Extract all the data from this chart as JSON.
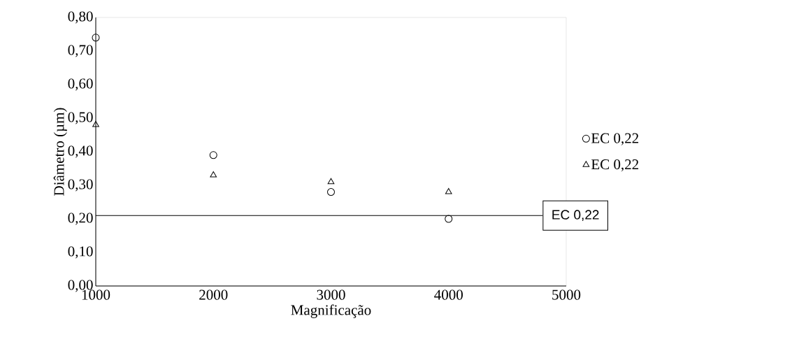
{
  "chart_data": {
    "type": "scatter",
    "xlabel": "Magnificação",
    "ylabel": "Diâmetro (µm)",
    "x": [
      1000,
      2000,
      3000,
      4000
    ],
    "series": [
      {
        "name": "EC 0,22",
        "color": "#000000",
        "marker": "circle",
        "values": [
          0.74,
          0.39,
          0.28,
          0.2
        ]
      },
      {
        "name": "EC 0,22",
        "color": "#000000",
        "marker": "triangle",
        "values": [
          0.48,
          0.33,
          0.31,
          0.28
        ]
      }
    ],
    "xlim": [
      1000,
      5000
    ],
    "xticks": [
      1000,
      2000,
      3000,
      4000,
      5000
    ],
    "ylim": [
      0,
      0.8
    ],
    "yticks": [
      {
        "value": 0,
        "label": "0,00"
      },
      {
        "value": 0.1,
        "label": "0,10"
      },
      {
        "value": 0.2,
        "label": "0,20"
      },
      {
        "value": 0.3,
        "label": "0,30"
      },
      {
        "value": 0.4,
        "label": "0,40"
      },
      {
        "value": 0.5,
        "label": "0,50"
      },
      {
        "value": 0.6,
        "label": "0,60"
      },
      {
        "value": 0.7,
        "label": "0,70"
      },
      {
        "value": 0.8,
        "label": "0,80"
      }
    ],
    "ref_lines": [
      {
        "axis": "y",
        "value": 0.21,
        "label": "EC 0,22",
        "color": "#000000"
      }
    ],
    "grid": false,
    "legend": "right"
  }
}
